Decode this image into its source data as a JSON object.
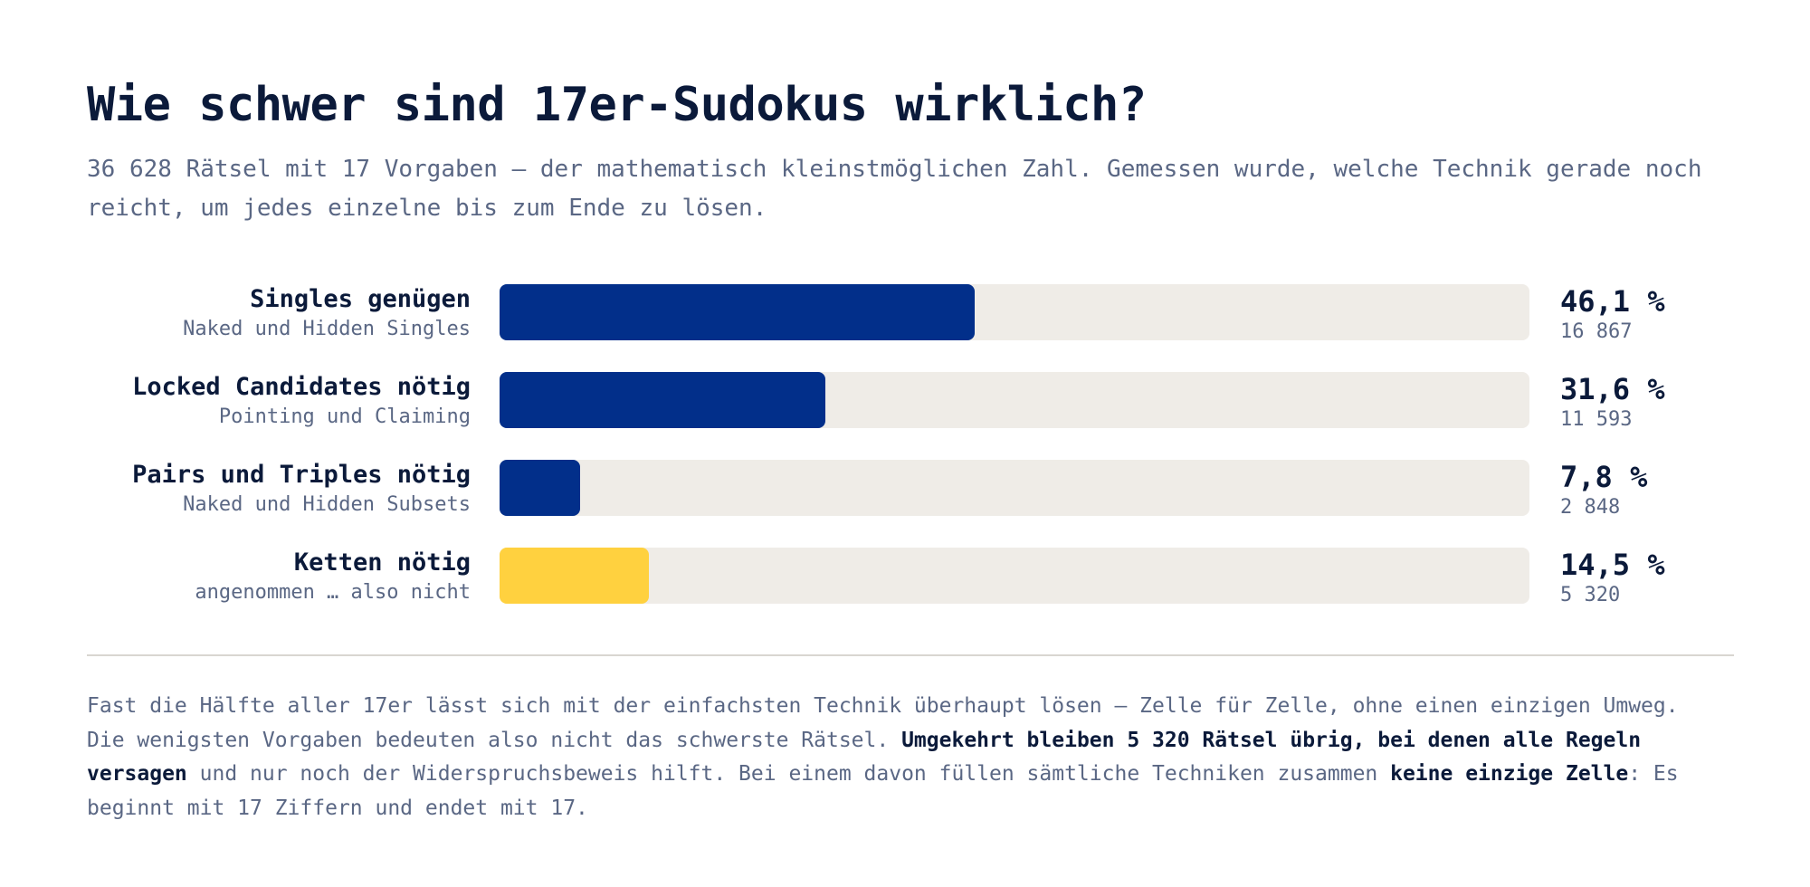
{
  "title": "Wie schwer sind 17er-Sudokus wirklich?",
  "subtitle": "36 628 Rätsel mit 17 Vorgaben — der mathematisch kleinstmöglichen Zahl. Gemessen wurde, welche Technik gerade noch reicht, um jedes einzelne bis zum Ende zu lösen.",
  "colors": {
    "primary": "#022f8a",
    "highlight": "#ffd13f",
    "track": "#efece7",
    "text_dark": "#0b1a3a",
    "text_muted": "#5a6784"
  },
  "chart_data": {
    "type": "bar",
    "orientation": "horizontal",
    "title": "Wie schwer sind 17er-Sudokus wirklich?",
    "xlim": [
      0,
      100
    ],
    "unit": "%",
    "categories": [
      "Singles genügen",
      "Locked Candidates nötig",
      "Pairs und Triples nötig",
      "Ketten nötig"
    ],
    "rows": [
      {
        "label": "Singles genügen",
        "sublabel": "Naked und Hidden Singles",
        "value": 46.1,
        "value_label": "46,1 %",
        "count_label": "16 867",
        "color": "#022f8a"
      },
      {
        "label": "Locked Candidates nötig",
        "sublabel": "Pointing und Claiming",
        "value": 31.6,
        "value_label": "31,6 %",
        "count_label": "11 593",
        "color": "#022f8a"
      },
      {
        "label": "Pairs und Triples nötig",
        "sublabel": "Naked und Hidden Subsets",
        "value": 7.8,
        "value_label": "7,8 %",
        "count_label": "2 848",
        "color": "#022f8a"
      },
      {
        "label": "Ketten nötig",
        "sublabel": "angenommen … also nicht",
        "value": 14.5,
        "value_label": "14,5 %",
        "count_label": "5 320",
        "color": "#ffd13f"
      }
    ]
  },
  "footnote": {
    "part1": "Fast die Hälfte aller 17er lässt sich mit der einfachsten Technik überhaupt lösen — Zelle für Zelle, ohne einen einzigen Umweg. Die wenigsten Vorgaben bedeuten also nicht das schwerste Rätsel. ",
    "bold1": "Umgekehrt bleiben 5 320 Rätsel übrig, bei denen alle Regeln versagen",
    "part2": " und nur noch der Widerspruchsbeweis hilft. Bei einem davon füllen sämtliche Techniken zusammen ",
    "bold2": "keine einzige Zelle",
    "part3": ": Es beginnt mit 17 Ziffern und endet mit 17."
  }
}
